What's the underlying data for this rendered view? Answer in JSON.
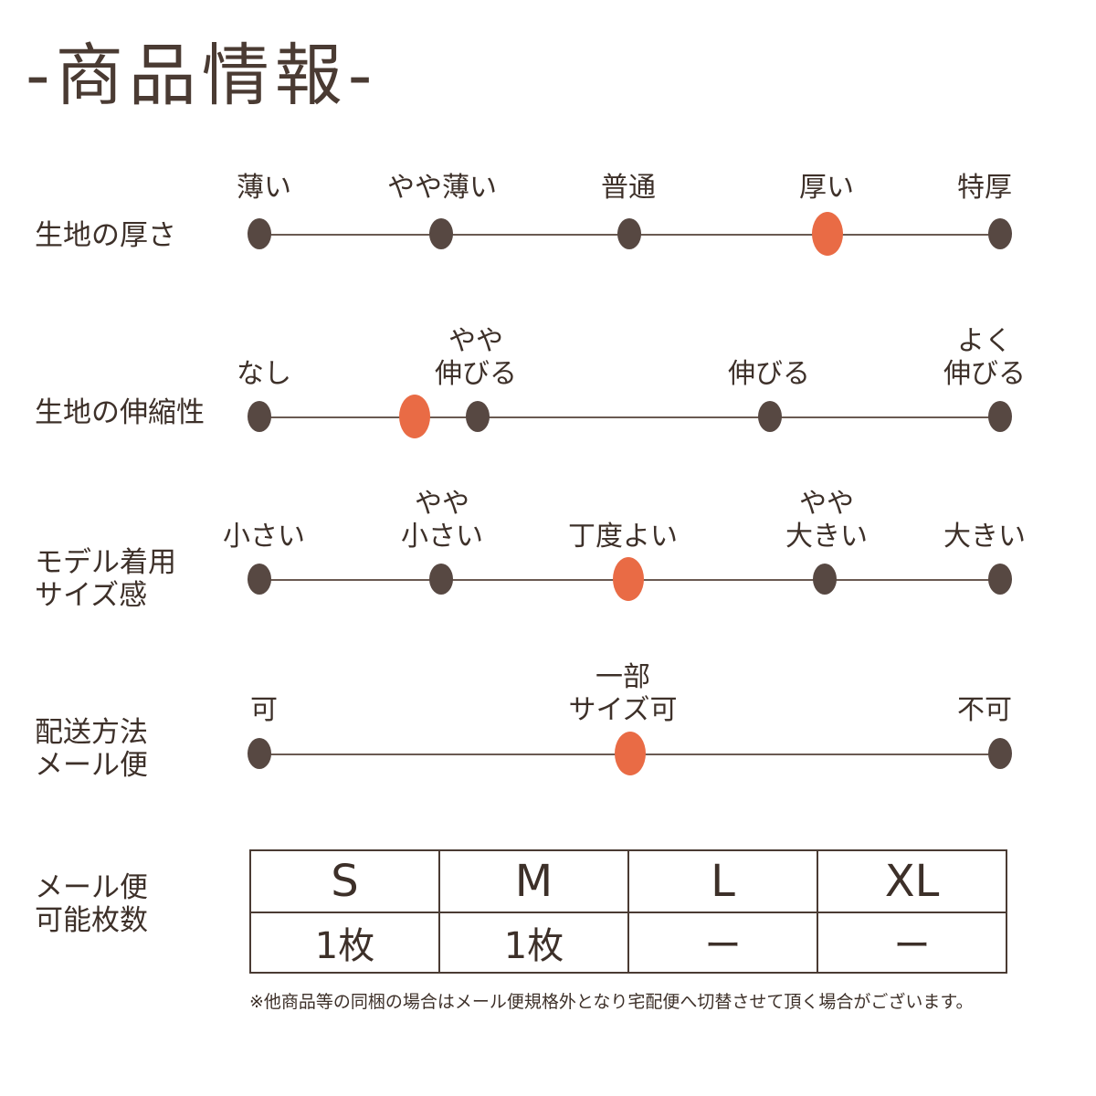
{
  "title": "-商品情報-",
  "rows": [
    {
      "label": "生地の厚さ",
      "options": [
        "薄い",
        "やや薄い",
        "普通",
        "厚い",
        "特厚"
      ],
      "selected": "厚い"
    },
    {
      "label": "生地の伸縮性",
      "options": [
        "なし",
        "やや\n伸びる",
        "伸びる",
        "よく\n伸びる"
      ],
      "selected_value": 0.2
    },
    {
      "label": "モデル着用\nサイズ感",
      "options": [
        "小さい",
        "やや\n小さい",
        "丁度よい",
        "やや\n大きい",
        "大きい"
      ],
      "selected": "丁度よい"
    },
    {
      "label": "配送方法\nメール便",
      "options": [
        "可",
        "一部\nサイズ可",
        "不可"
      ],
      "selected": "一部\nサイズ可"
    }
  ],
  "mail_table": {
    "label": "メール便\n可能枚数",
    "sizes": [
      "S",
      "M",
      "L",
      "XL"
    ],
    "counts": [
      "1枚",
      "1枚",
      "ー",
      "ー"
    ]
  },
  "note": "※他商品等の同梱の場合はメール便規格外となり宅配便へ切替させて頂く場合がございます。",
  "colors": {
    "text": "#3d3029",
    "dot": "#574842",
    "selected_dot": "#e96b45",
    "line": "#6a5a52"
  }
}
